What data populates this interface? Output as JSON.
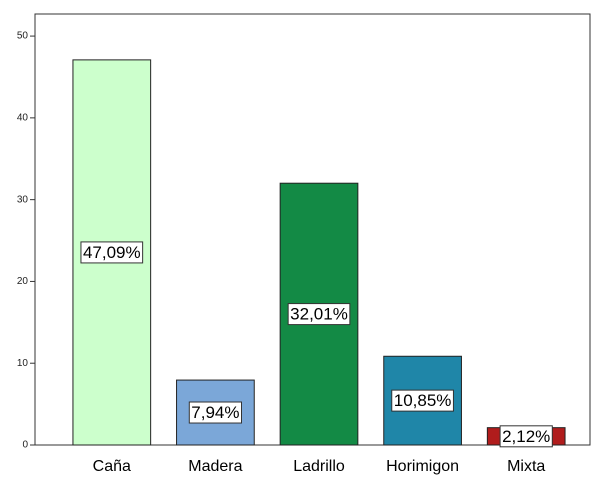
{
  "chart_data": {
    "type": "bar",
    "categories": [
      "Caña",
      "Madera",
      "Ladrillo",
      "Horimigon",
      "Mixta"
    ],
    "values": [
      47.09,
      7.94,
      32.01,
      10.85,
      2.12
    ],
    "value_labels": [
      "47,09%",
      "7,94%",
      "32,01%",
      "10,85%",
      "2,12%"
    ],
    "colors": [
      "#ccffcc",
      "#7ba7d8",
      "#138a45",
      "#1f86a8",
      "#b01c1c"
    ],
    "ylim": [
      0,
      52.7
    ],
    "yticks": [
      0,
      10,
      20,
      30,
      40,
      50
    ],
    "grid": false
  }
}
